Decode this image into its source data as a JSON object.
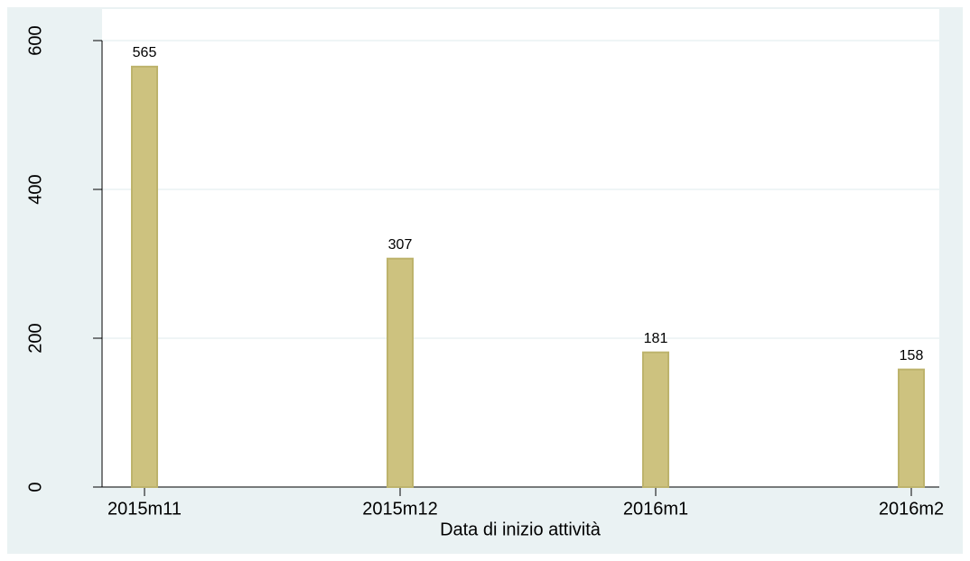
{
  "chart_data": {
    "type": "bar",
    "x_label": "Data di inizio attività",
    "categories": [
      "2015m11",
      "2015m12",
      "2016m1",
      "2016m2"
    ],
    "values": [
      565,
      307,
      181,
      158
    ],
    "color": "#cdc27f",
    "ylim": [
      0,
      600
    ],
    "yticks": [
      0,
      200,
      400,
      600
    ],
    "grid": true
  }
}
